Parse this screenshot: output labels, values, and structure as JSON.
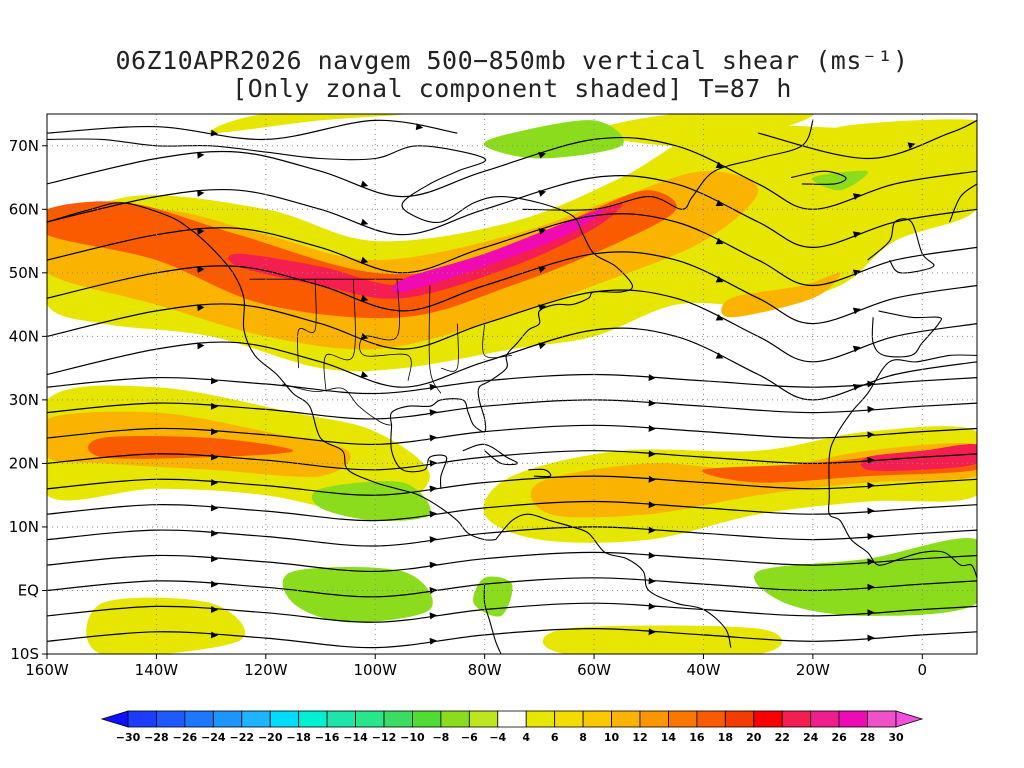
{
  "title": {
    "line1": "06Z10APR2026 navgem 500−850mb vertical shear (ms⁻¹)",
    "line2": "[Only zonal component shaded] T=87 h"
  },
  "map": {
    "lon_range": [
      -160,
      10
    ],
    "lat_range": [
      -10,
      75
    ],
    "lon_labels": [
      {
        "lon": -160,
        "text": "160W"
      },
      {
        "lon": -140,
        "text": "140W"
      },
      {
        "lon": -120,
        "text": "120W"
      },
      {
        "lon": -100,
        "text": "100W"
      },
      {
        "lon": -80,
        "text": "80W"
      },
      {
        "lon": -60,
        "text": "60W"
      },
      {
        "lon": -40,
        "text": "40W"
      },
      {
        "lon": -20,
        "text": "20W"
      },
      {
        "lon": 0,
        "text": "0"
      }
    ],
    "lat_labels": [
      {
        "lat": 70,
        "text": "70N"
      },
      {
        "lat": 60,
        "text": "60N"
      },
      {
        "lat": 50,
        "text": "50N"
      },
      {
        "lat": 40,
        "text": "40N"
      },
      {
        "lat": 30,
        "text": "30N"
      },
      {
        "lat": 20,
        "text": "20N"
      },
      {
        "lat": 10,
        "text": "10N"
      },
      {
        "lat": 0,
        "text": "EQ"
      },
      {
        "lat": -10,
        "text": "10S"
      }
    ],
    "gridlines": "dotted"
  },
  "colorbar": {
    "labels": [
      "−30",
      "−28",
      "−26",
      "−24",
      "−22",
      "−20",
      "−18",
      "−16",
      "−14",
      "−12",
      "−10",
      "−8",
      "−6",
      "−4",
      "4",
      "6",
      "8",
      "10",
      "12",
      "14",
      "16",
      "18",
      "20",
      "22",
      "24",
      "26",
      "28",
      "30"
    ],
    "colors": [
      "#1010ff",
      "#1e3cff",
      "#1e5aff",
      "#1e78ff",
      "#1e96ff",
      "#1eb4ff",
      "#00dcff",
      "#00f0d2",
      "#1ee6aa",
      "#28e68c",
      "#3cdc64",
      "#50dc32",
      "#8cdc1e",
      "#bee61e",
      "#ffffff",
      "#e6e600",
      "#f5dc00",
      "#fac800",
      "#fab400",
      "#fa9600",
      "#fa7800",
      "#fa5a00",
      "#f53c00",
      "#fa0000",
      "#f51e50",
      "#f01e8c",
      "#f00ab4",
      "#f050c8",
      "#f050dc"
    ]
  },
  "shading": [
    {
      "level": 6,
      "color": "#e6e600",
      "regions": [
        [
          [
            -160,
            55
          ],
          [
            -145,
            62
          ],
          [
            -120,
            60
          ],
          [
            -100,
            55
          ],
          [
            -75,
            58
          ],
          [
            -55,
            65
          ],
          [
            -40,
            72
          ],
          [
            -20,
            73
          ],
          [
            10,
            70
          ],
          [
            10,
            60
          ],
          [
            -5,
            55
          ],
          [
            -15,
            48
          ],
          [
            -30,
            45
          ],
          [
            -45,
            45
          ],
          [
            -60,
            40
          ],
          [
            -75,
            38
          ],
          [
            -95,
            35
          ],
          [
            -110,
            35
          ],
          [
            -130,
            40
          ],
          [
            -150,
            42
          ],
          [
            -160,
            45
          ]
        ],
        [
          [
            -160,
            30
          ],
          [
            -140,
            32
          ],
          [
            -115,
            28
          ],
          [
            -100,
            25
          ],
          [
            -90,
            18
          ],
          [
            -100,
            12
          ],
          [
            -120,
            15
          ],
          [
            -140,
            16
          ],
          [
            -160,
            15
          ]
        ],
        [
          [
            -75,
            18
          ],
          [
            -55,
            22
          ],
          [
            -30,
            22
          ],
          [
            -10,
            25
          ],
          [
            10,
            25
          ],
          [
            10,
            15
          ],
          [
            -10,
            14
          ],
          [
            -30,
            12
          ],
          [
            -50,
            8
          ],
          [
            -70,
            8
          ],
          [
            -80,
            12
          ]
        ],
        [
          [
            -150,
            -2
          ],
          [
            -130,
            -2
          ],
          [
            -125,
            -8
          ],
          [
            -150,
            -10
          ]
        ],
        [
          [
            -65,
            -6
          ],
          [
            -30,
            -6
          ],
          [
            -30,
            -10
          ],
          [
            -65,
            -10
          ]
        ],
        [
          [
            -130,
            72
          ],
          [
            -110,
            74
          ],
          [
            -95,
            75
          ],
          [
            -120,
            75
          ]
        ],
        [
          [
            -60,
            72
          ],
          [
            -45,
            75
          ],
          [
            -20,
            75
          ],
          [
            -40,
            70
          ]
        ],
        [
          [
            -15,
            73
          ],
          [
            10,
            74
          ],
          [
            10,
            70
          ],
          [
            -10,
            70
          ]
        ]
      ]
    },
    {
      "level": 12,
      "color": "#fab400",
      "regions": [
        [
          [
            -160,
            57
          ],
          [
            -140,
            60
          ],
          [
            -120,
            56
          ],
          [
            -100,
            52
          ],
          [
            -75,
            56
          ],
          [
            -55,
            62
          ],
          [
            -40,
            66
          ],
          [
            -30,
            63
          ],
          [
            -40,
            55
          ],
          [
            -60,
            48
          ],
          [
            -80,
            42
          ],
          [
            -100,
            38
          ],
          [
            -120,
            40
          ],
          [
            -140,
            45
          ],
          [
            -160,
            50
          ]
        ],
        [
          [
            -160,
            27
          ],
          [
            -140,
            28
          ],
          [
            -120,
            25
          ],
          [
            -105,
            22
          ],
          [
            -110,
            18
          ],
          [
            -130,
            19
          ],
          [
            -150,
            20
          ],
          [
            -160,
            21
          ]
        ],
        [
          [
            -70,
            17
          ],
          [
            -50,
            20
          ],
          [
            -30,
            19
          ],
          [
            -10,
            22
          ],
          [
            10,
            23
          ],
          [
            10,
            18
          ],
          [
            -10,
            17
          ],
          [
            -30,
            15
          ],
          [
            -50,
            12
          ],
          [
            -68,
            12
          ]
        ],
        [
          [
            -35,
            43
          ],
          [
            -20,
            46
          ],
          [
            -15,
            50
          ],
          [
            -22,
            48
          ],
          [
            -35,
            46
          ]
        ]
      ]
    },
    {
      "level": 18,
      "color": "#fa5a00",
      "regions": [
        [
          [
            -160,
            60
          ],
          [
            -145,
            61
          ],
          [
            -125,
            56
          ],
          [
            -100,
            50
          ],
          [
            -80,
            52
          ],
          [
            -60,
            60
          ],
          [
            -50,
            63
          ],
          [
            -45,
            60
          ],
          [
            -55,
            55
          ],
          [
            -75,
            48
          ],
          [
            -95,
            43
          ],
          [
            -120,
            45
          ],
          [
            -140,
            52
          ],
          [
            -160,
            56
          ]
        ],
        [
          [
            -150,
            24
          ],
          [
            -130,
            24
          ],
          [
            -115,
            22
          ],
          [
            -130,
            21
          ],
          [
            -150,
            21
          ]
        ],
        [
          [
            -40,
            19
          ],
          [
            -20,
            20
          ],
          [
            0,
            22
          ],
          [
            10,
            22
          ],
          [
            10,
            19
          ],
          [
            -10,
            18
          ],
          [
            -30,
            17
          ]
        ]
      ]
    },
    {
      "level": 24,
      "color": "#f51e50",
      "regions": [
        [
          [
            -125,
            53
          ],
          [
            -110,
            51
          ],
          [
            -95,
            48
          ],
          [
            -80,
            52
          ],
          [
            -65,
            58
          ],
          [
            -55,
            61
          ],
          [
            -60,
            57
          ],
          [
            -75,
            51
          ],
          [
            -95,
            46
          ],
          [
            -110,
            48
          ],
          [
            -125,
            51
          ]
        ],
        [
          [
            -10,
            21
          ],
          [
            0,
            22
          ],
          [
            10,
            23
          ],
          [
            10,
            20
          ],
          [
            0,
            19
          ],
          [
            -10,
            19
          ]
        ]
      ]
    },
    {
      "level": 28,
      "color": "#f00ab4",
      "regions": [
        [
          [
            -95,
            49
          ],
          [
            -80,
            53
          ],
          [
            -65,
            58
          ],
          [
            -58,
            60
          ],
          [
            -65,
            56
          ],
          [
            -80,
            51
          ],
          [
            -95,
            47
          ]
        ]
      ]
    },
    {
      "level": -6,
      "color": "#8cdc1e",
      "regions": [
        [
          [
            -75,
            72
          ],
          [
            -60,
            74
          ],
          [
            -55,
            70
          ],
          [
            -70,
            68
          ],
          [
            -80,
            70
          ]
        ],
        [
          [
            -110,
            16
          ],
          [
            -95,
            17
          ],
          [
            -90,
            12
          ],
          [
            -100,
            11
          ],
          [
            -110,
            13
          ]
        ],
        [
          [
            -115,
            3
          ],
          [
            -95,
            3
          ],
          [
            -90,
            -3
          ],
          [
            -105,
            -5
          ],
          [
            -115,
            -2
          ]
        ],
        [
          [
            -30,
            3
          ],
          [
            -10,
            5
          ],
          [
            10,
            8
          ],
          [
            10,
            -2
          ],
          [
            -10,
            -4
          ],
          [
            -25,
            -2
          ]
        ],
        [
          [
            -80,
            2
          ],
          [
            -75,
            1
          ],
          [
            -77,
            -4
          ],
          [
            -82,
            -2
          ]
        ],
        [
          [
            -20,
            65
          ],
          [
            -10,
            66
          ],
          [
            -15,
            63
          ]
        ]
      ]
    }
  ]
}
